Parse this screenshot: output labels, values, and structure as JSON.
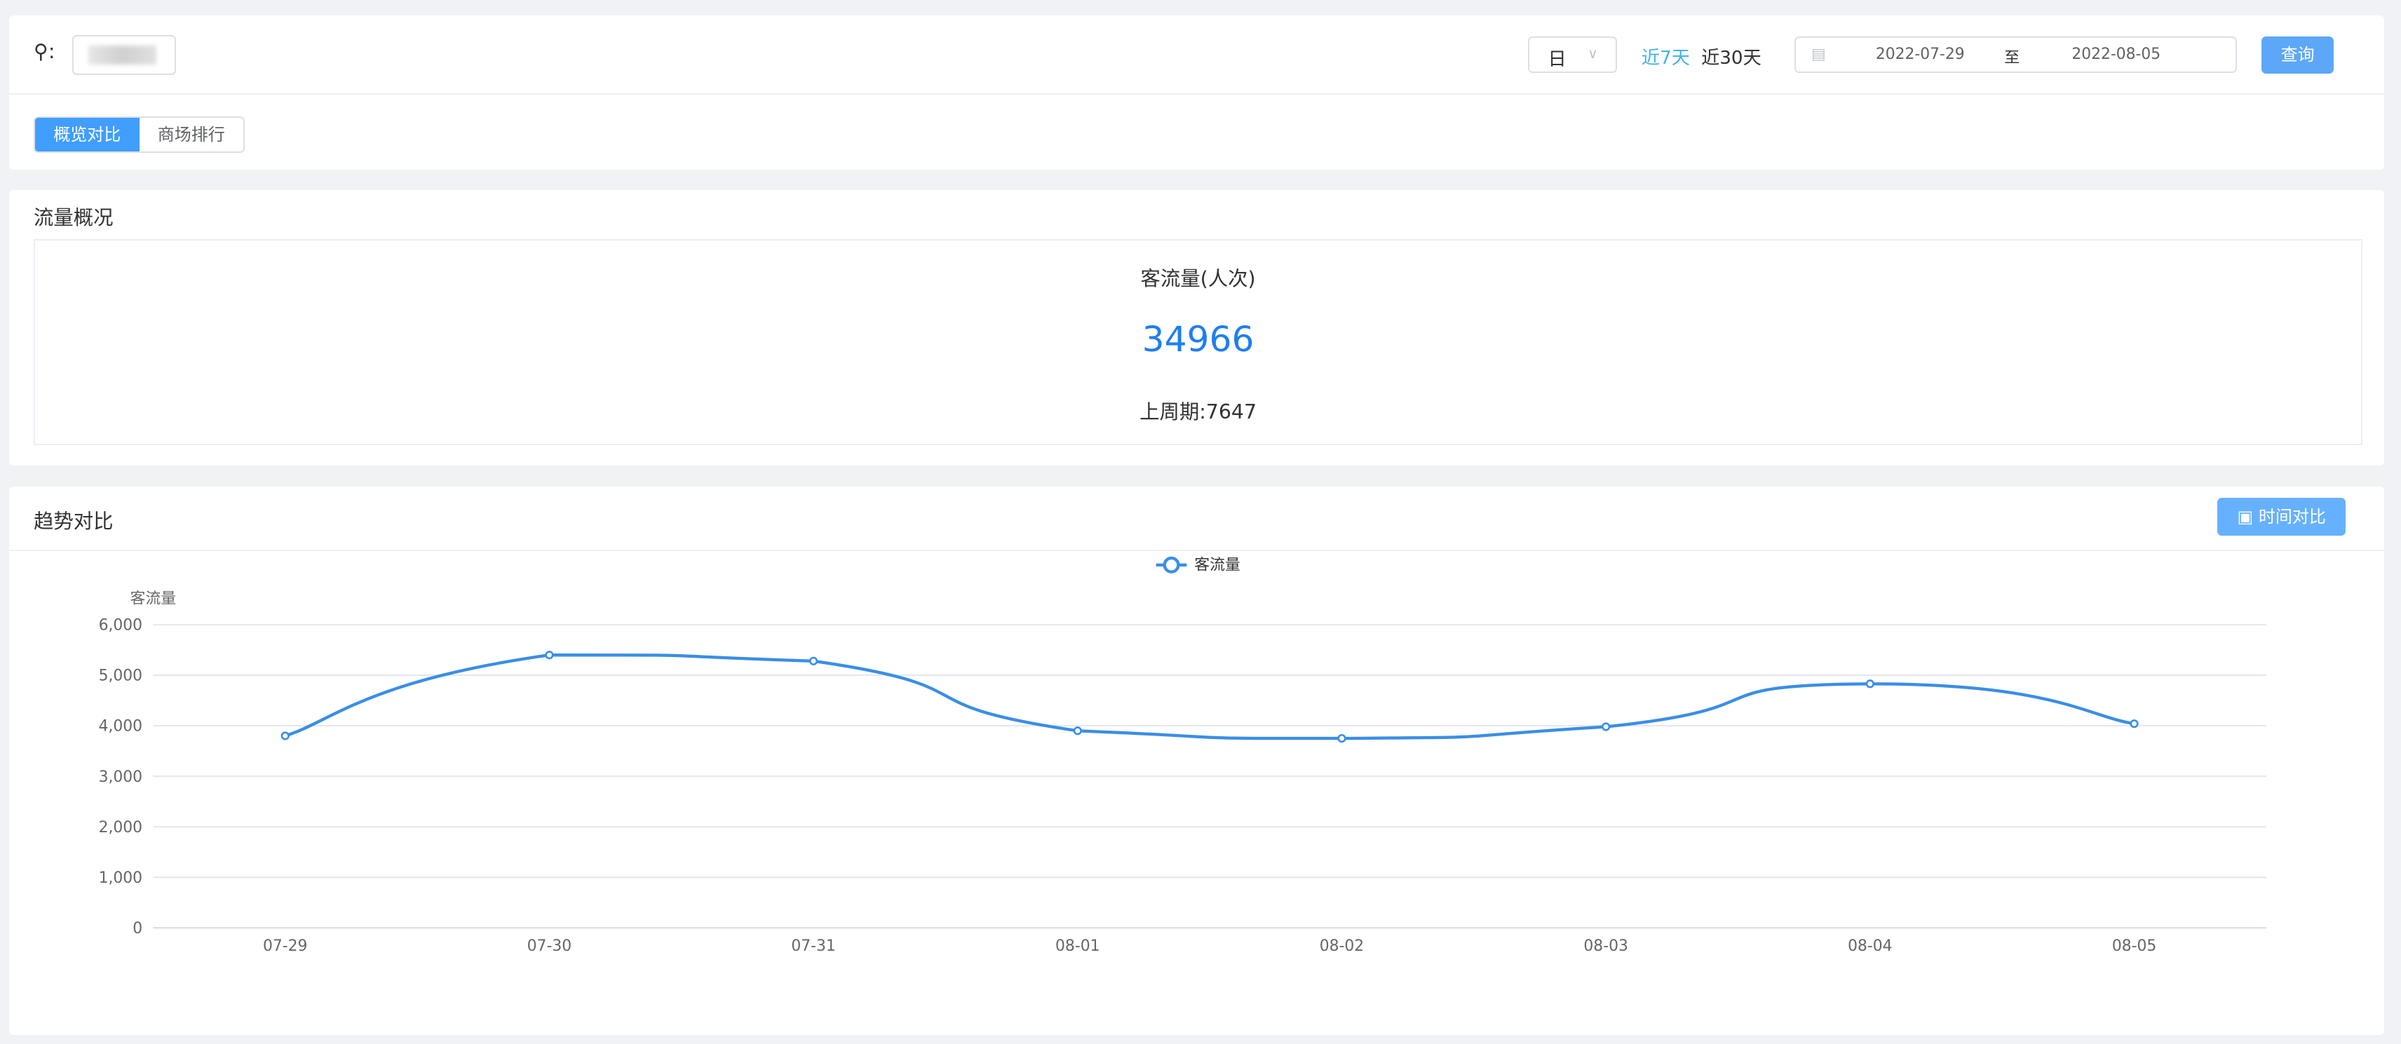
{
  "filter": {
    "location_icon": "map-pin-icon",
    "location_label": ":",
    "granularity": "日",
    "quick_ranges": [
      "近7天",
      "近30天"
    ],
    "active_quick_range": "近7天",
    "start_date": "2022-07-29",
    "range_separator": "至",
    "end_date": "2022-08-05",
    "query_button": "查询"
  },
  "tabs": [
    {
      "label": "概览对比",
      "active": true
    },
    {
      "label": "商场排行",
      "active": false
    }
  ],
  "overview": {
    "title": "流量概况",
    "metric_label": "客流量(人次)",
    "metric_value": "34966",
    "previous_period": "上周期:7647"
  },
  "trend": {
    "title": "趋势对比",
    "compare_button": "时间对比"
  },
  "colors": {
    "accent": "#409eff",
    "series": "#3a8ee6",
    "value": "#1e7ff0",
    "quick_active": "#42b4e6"
  },
  "chart_data": {
    "type": "line",
    "smooth": true,
    "legend": {
      "entries": [
        "客流量"
      ],
      "placement": "top-center"
    },
    "ylabel": "客流量",
    "xlabel": "",
    "ylim": [
      0,
      6000
    ],
    "yticks": [
      "0",
      "1,000",
      "2,000",
      "3,000",
      "4,000",
      "5,000",
      "6,000"
    ],
    "grid": true,
    "categories": [
      "07-29",
      "07-30",
      "07-31",
      "08-01",
      "08-02",
      "08-03",
      "08-04",
      "08-05"
    ],
    "series": [
      {
        "name": "客流量",
        "values": [
          3800,
          5400,
          5280,
          3900,
          3750,
          3980,
          4830,
          4040
        ]
      }
    ]
  }
}
